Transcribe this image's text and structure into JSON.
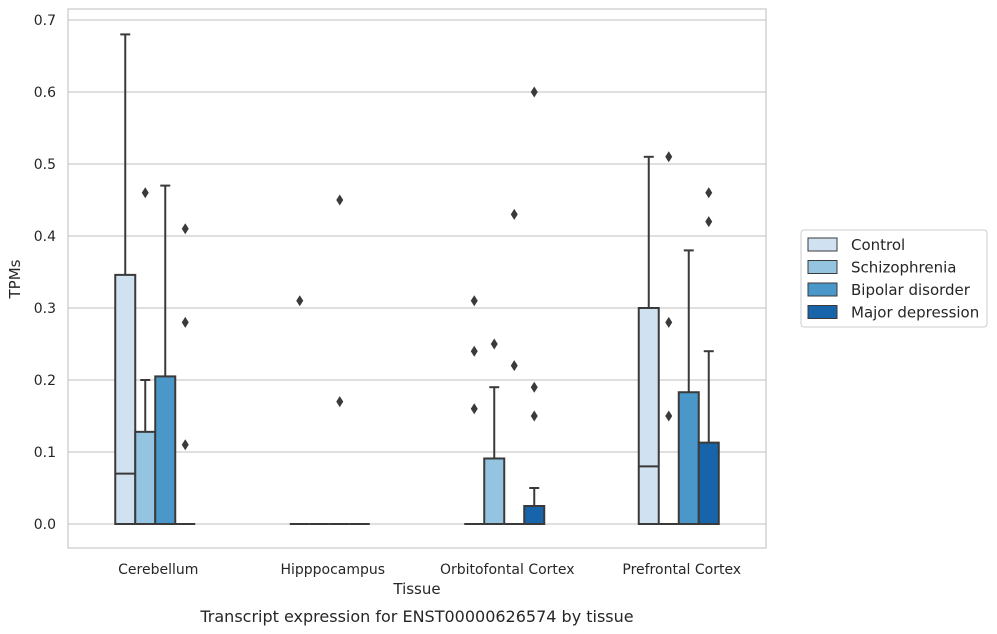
{
  "caption": "Transcript expression for ENST00000626574 by tissue",
  "chart_data": {
    "type": "box",
    "title": "",
    "xlabel": "Tissue",
    "ylabel": "TPMs",
    "ylim": [
      -0.033,
      0.715
    ],
    "yticks": [
      "0.0",
      "0.1",
      "0.2",
      "0.3",
      "0.4",
      "0.5",
      "0.6",
      "0.7"
    ],
    "categories": [
      "Cerebellum",
      "Hipppocampus",
      "Orbitofontal Cortex",
      "Prefrontal Cortex"
    ],
    "grid": true,
    "legend_position": "right",
    "series": [
      {
        "name": "Control",
        "color": "#d0e1f2",
        "boxes": [
          {
            "q1": 0.0,
            "median": 0.07,
            "q3": 0.346,
            "whisker_low": 0.0,
            "whisker_high": 0.68,
            "outliers": []
          },
          {
            "q1": 0.0,
            "median": 0.0,
            "q3": 0.0,
            "whisker_low": 0.0,
            "whisker_high": 0.0,
            "outliers": [
              0.31
            ]
          },
          {
            "q1": 0.0,
            "median": 0.0,
            "q3": 0.0,
            "whisker_low": 0.0,
            "whisker_high": 0.0,
            "outliers": [
              0.16,
              0.24,
              0.31
            ]
          },
          {
            "q1": 0.0,
            "median": 0.08,
            "q3": 0.3,
            "whisker_low": 0.0,
            "whisker_high": 0.51,
            "outliers": []
          }
        ]
      },
      {
        "name": "Schizophrenia",
        "color": "#94c4df",
        "boxes": [
          {
            "q1": 0.0,
            "median": 0.0,
            "q3": 0.128,
            "whisker_low": 0.0,
            "whisker_high": 0.2,
            "outliers": [
              0.46
            ]
          },
          {
            "q1": 0.0,
            "median": 0.0,
            "q3": 0.0,
            "whisker_low": 0.0,
            "whisker_high": 0.0,
            "outliers": []
          },
          {
            "q1": 0.0,
            "median": 0.0,
            "q3": 0.091,
            "whisker_low": 0.0,
            "whisker_high": 0.19,
            "outliers": [
              0.25
            ]
          },
          {
            "q1": 0.0,
            "median": 0.0,
            "q3": 0.0,
            "whisker_low": 0.0,
            "whisker_high": 0.0,
            "outliers": [
              0.15,
              0.28,
              0.51
            ]
          }
        ]
      },
      {
        "name": "Bipolar disorder",
        "color": "#4a98c9",
        "boxes": [
          {
            "q1": 0.0,
            "median": 0.0,
            "q3": 0.205,
            "whisker_low": 0.0,
            "whisker_high": 0.47,
            "outliers": []
          },
          {
            "q1": 0.0,
            "median": 0.0,
            "q3": 0.0,
            "whisker_low": 0.0,
            "whisker_high": 0.0,
            "outliers": [
              0.17,
              0.45
            ]
          },
          {
            "q1": 0.0,
            "median": 0.0,
            "q3": 0.0,
            "whisker_low": 0.0,
            "whisker_high": 0.0,
            "outliers": [
              0.22,
              0.43
            ]
          },
          {
            "q1": 0.0,
            "median": 0.0,
            "q3": 0.183,
            "whisker_low": 0.0,
            "whisker_high": 0.38,
            "outliers": []
          }
        ]
      },
      {
        "name": "Major depression",
        "color": "#1764ab",
        "boxes": [
          {
            "q1": 0.0,
            "median": 0.0,
            "q3": 0.0,
            "whisker_low": 0.0,
            "whisker_high": 0.0,
            "outliers": [
              0.11,
              0.28,
              0.41
            ]
          },
          {
            "q1": 0.0,
            "median": 0.0,
            "q3": 0.0,
            "whisker_low": 0.0,
            "whisker_high": 0.0,
            "outliers": []
          },
          {
            "q1": 0.0,
            "median": 0.0,
            "q3": 0.025,
            "whisker_low": 0.0,
            "whisker_high": 0.05,
            "outliers": [
              0.15,
              0.19,
              0.6
            ]
          },
          {
            "q1": 0.0,
            "median": 0.0,
            "q3": 0.113,
            "whisker_low": 0.0,
            "whisker_high": 0.24,
            "outliers": [
              0.42,
              0.46
            ]
          }
        ]
      }
    ]
  }
}
